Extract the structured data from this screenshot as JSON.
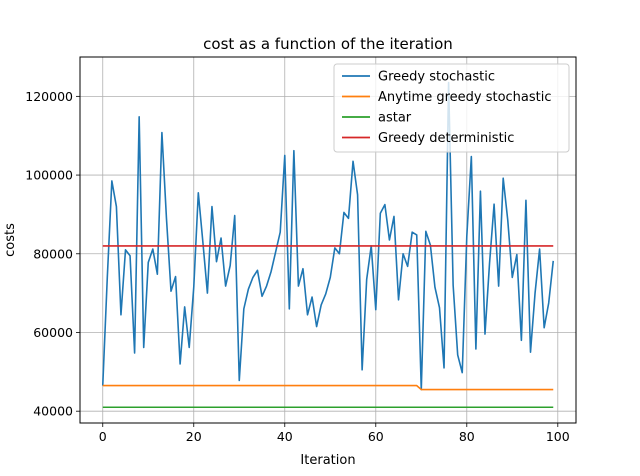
{
  "chart_data": {
    "type": "line",
    "title": "cost as a function of the iteration",
    "xlabel": "Iteration",
    "ylabel": "costs",
    "xlim": [
      -5,
      104
    ],
    "ylim": [
      37000,
      130000
    ],
    "xticks": [
      0,
      20,
      40,
      60,
      80,
      100
    ],
    "yticks": [
      40000,
      60000,
      80000,
      100000,
      120000
    ],
    "grid": true,
    "legend_position": "top-right",
    "series": [
      {
        "name": "Greedy stochastic",
        "color": "#1f77b4",
        "x": [
          0,
          1,
          2,
          3,
          4,
          5,
          6,
          7,
          8,
          9,
          10,
          11,
          12,
          13,
          14,
          15,
          16,
          17,
          18,
          19,
          20,
          21,
          22,
          23,
          24,
          25,
          26,
          27,
          28,
          29,
          30,
          31,
          32,
          33,
          34,
          35,
          36,
          37,
          38,
          39,
          40,
          41,
          42,
          43,
          44,
          45,
          46,
          47,
          48,
          49,
          50,
          51,
          52,
          53,
          54,
          55,
          56,
          57,
          58,
          59,
          60,
          61,
          62,
          63,
          64,
          65,
          66,
          67,
          68,
          69,
          70,
          71,
          72,
          73,
          74,
          75,
          76,
          77,
          78,
          79,
          80,
          81,
          82,
          83,
          84,
          85,
          86,
          87,
          88,
          89,
          90,
          91,
          92,
          93,
          94,
          95,
          96,
          97,
          98,
          99
        ],
        "y": [
          46500,
          74000,
          98500,
          92000,
          64500,
          81000,
          79500,
          54800,
          114800,
          56200,
          77800,
          81200,
          74800,
          110800,
          89000,
          70500,
          74200,
          52000,
          66500,
          56200,
          71500,
          95500,
          83000,
          70000,
          92000,
          78000,
          84000,
          71800,
          77000,
          89700,
          47800,
          66000,
          71000,
          74000,
          75800,
          69200,
          71800,
          75500,
          80500,
          85500,
          105000,
          66000,
          106200,
          71800,
          76200,
          64500,
          69000,
          61500,
          67000,
          69800,
          74000,
          81500,
          80000,
          90500,
          89000,
          103500,
          95000,
          50500,
          73500,
          82000,
          65800,
          90300,
          92500,
          83500,
          89500,
          68300,
          80000,
          76800,
          85500,
          84800,
          45500,
          85700,
          82200,
          71500,
          66300,
          51000,
          123500,
          72000,
          54300,
          49800,
          84400,
          104700,
          55800,
          95900,
          59600,
          77600,
          92600,
          71800,
          99200,
          88600,
          74000,
          79800,
          58000,
          93600,
          55000,
          70000,
          81200,
          61200,
          67500,
          78200
        ]
      },
      {
        "name": "Anytime greedy stochastic",
        "color": "#ff7f0e",
        "x": [
          0,
          69,
          70,
          99
        ],
        "y": [
          46500,
          46500,
          45500,
          45500
        ]
      },
      {
        "name": "astar",
        "color": "#2ca02c",
        "x": [
          0,
          99
        ],
        "y": [
          41000,
          41000
        ]
      },
      {
        "name": "Greedy deterministic",
        "color": "#d62728",
        "x": [
          0,
          99
        ],
        "y": [
          82000,
          82000
        ]
      }
    ]
  }
}
